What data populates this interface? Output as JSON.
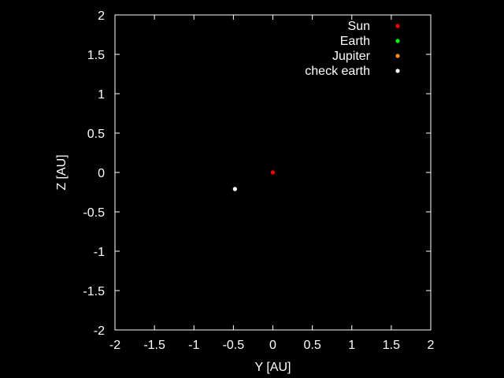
{
  "chart_data": {
    "type": "scatter",
    "title": "",
    "xlabel": "Y [AU]",
    "ylabel": "Z [AU]",
    "xlim": [
      -2,
      2
    ],
    "ylim": [
      -2,
      2
    ],
    "xticks": [
      "-2",
      "-1.5",
      "-1",
      "-0.5",
      "0",
      "0.5",
      "1",
      "1.5",
      "2"
    ],
    "yticks": [
      "-2",
      "-1.5",
      "-1",
      "-0.5",
      "0",
      "0.5",
      "1",
      "1.5",
      "2"
    ],
    "grid": false,
    "legend_position": "top-right",
    "background": "#000000",
    "axis_color": "#ffffff",
    "series": [
      {
        "name": "Sun",
        "color": "#ff0000",
        "points": [
          [
            0,
            0
          ]
        ]
      },
      {
        "name": "Earth",
        "color": "#00ff00",
        "points": [
          [
            -0.48,
            -0.21
          ]
        ]
      },
      {
        "name": "Jupiter",
        "color": "#ff8c1a",
        "points": []
      },
      {
        "name": "check earth",
        "color": "#ffffff",
        "points": [
          [
            -0.48,
            -0.21
          ]
        ]
      }
    ]
  }
}
